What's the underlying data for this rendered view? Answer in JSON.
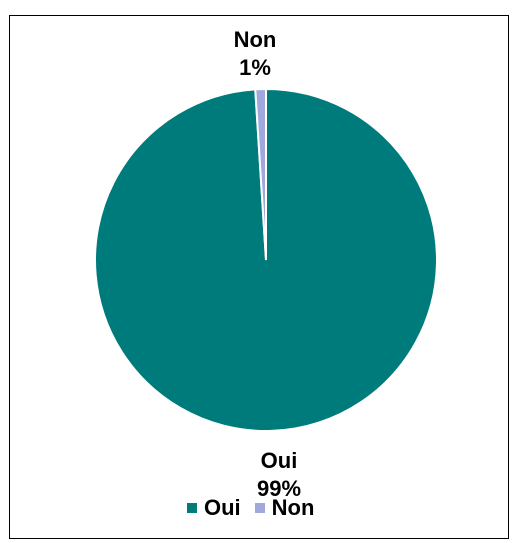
{
  "chart_data": {
    "type": "pie",
    "title": "",
    "categories": [
      "Oui",
      "Non"
    ],
    "values": [
      99,
      1
    ],
    "value_labels": [
      "99%",
      "1%"
    ],
    "colors": [
      "#007B7B",
      "#A0A8DC"
    ],
    "start_angle_deg": 0,
    "direction": "clockwise",
    "legend": {
      "placement": "bottom",
      "entries": [
        "Oui",
        "Non"
      ]
    }
  }
}
